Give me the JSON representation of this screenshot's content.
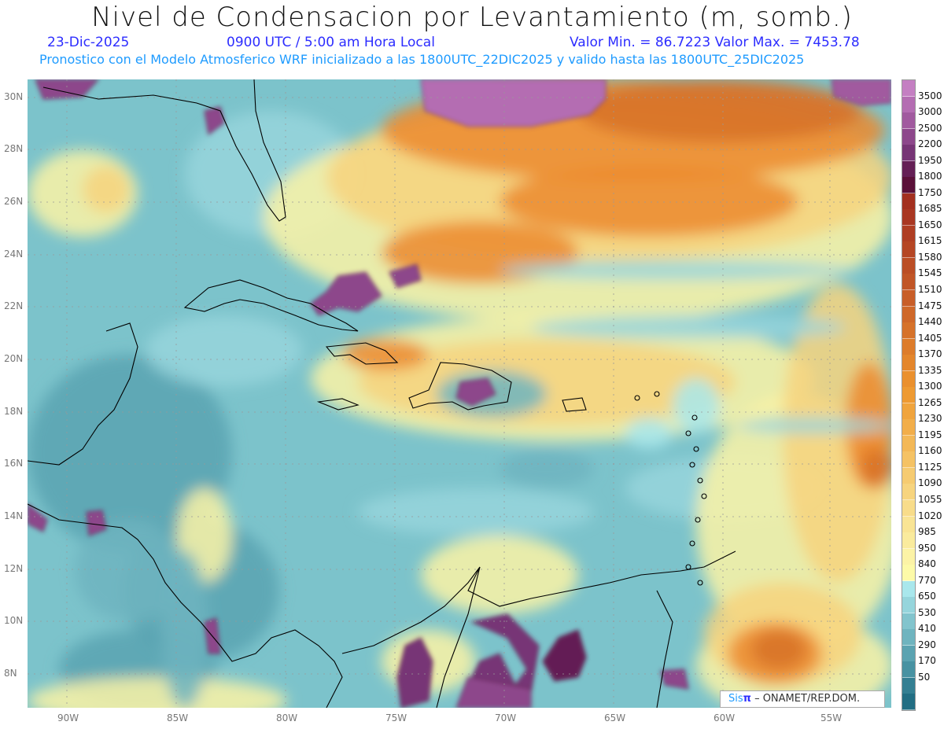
{
  "header": {
    "title": "Nivel de Condensacion por Levantamiento (m, somb.)",
    "date": "23-Dic-2025",
    "time": "0900 UTC / 5:00 am Hora Local",
    "min_max": "Valor Min. = 86.7223  Valor Max. = 7453.78",
    "subtitle": "Pronostico con el Modelo Atmosferico WRF inicializado a las 1800UTC_22DIC2025 y valido hasta las  1800UTC_25DIC2025"
  },
  "axes": {
    "lon_labels": [
      "90W",
      "85W",
      "80W",
      "75W",
      "70W",
      "65W",
      "60W",
      "55W"
    ],
    "lat_labels": [
      "30N",
      "28N",
      "26N",
      "24N",
      "22N",
      "20N",
      "18N",
      "16N",
      "14N",
      "12N",
      "10N",
      "8N"
    ]
  },
  "colorbar": {
    "labels": [
      "3500",
      "3000",
      "2500",
      "2200",
      "1950",
      "1800",
      "1750",
      "1685",
      "1650",
      "1615",
      "1580",
      "1545",
      "1510",
      "1475",
      "1440",
      "1405",
      "1370",
      "1335",
      "1300",
      "1265",
      "1230",
      "1195",
      "1160",
      "1125",
      "1090",
      "1055",
      "1020",
      "985",
      "950",
      "840",
      "770",
      "650",
      "530",
      "410",
      "290",
      "170",
      "50"
    ],
    "colors": [
      "#c47fc2",
      "#b46db2",
      "#a15a9f",
      "#8d478b",
      "#773576",
      "#641f55",
      "#5a1038",
      "#a3301f",
      "#a93722",
      "#af3e23",
      "#b54624",
      "#bb4e25",
      "#c15627",
      "#c85e28",
      "#cf6829",
      "#d6722a",
      "#dd7c2b",
      "#e4862c",
      "#ea902e",
      "#ee9a32",
      "#f0a43d",
      "#f2ae4a",
      "#f3b857",
      "#f5c264",
      "#f6cb71",
      "#f7d47e",
      "#f8dc8a",
      "#f9e494",
      "#faeb9d",
      "#fcf3a6",
      "#fdfaa8",
      "#a9e7ec",
      "#96d5dc",
      "#82c4cd",
      "#6fb4bf",
      "#5ba3b1",
      "#4892a2",
      "#347f92",
      "#226e83"
    ]
  },
  "watermark": {
    "brand_a": "Sis",
    "brand_b": "π",
    "text": " –  ONAMET/REP.DOM."
  }
}
